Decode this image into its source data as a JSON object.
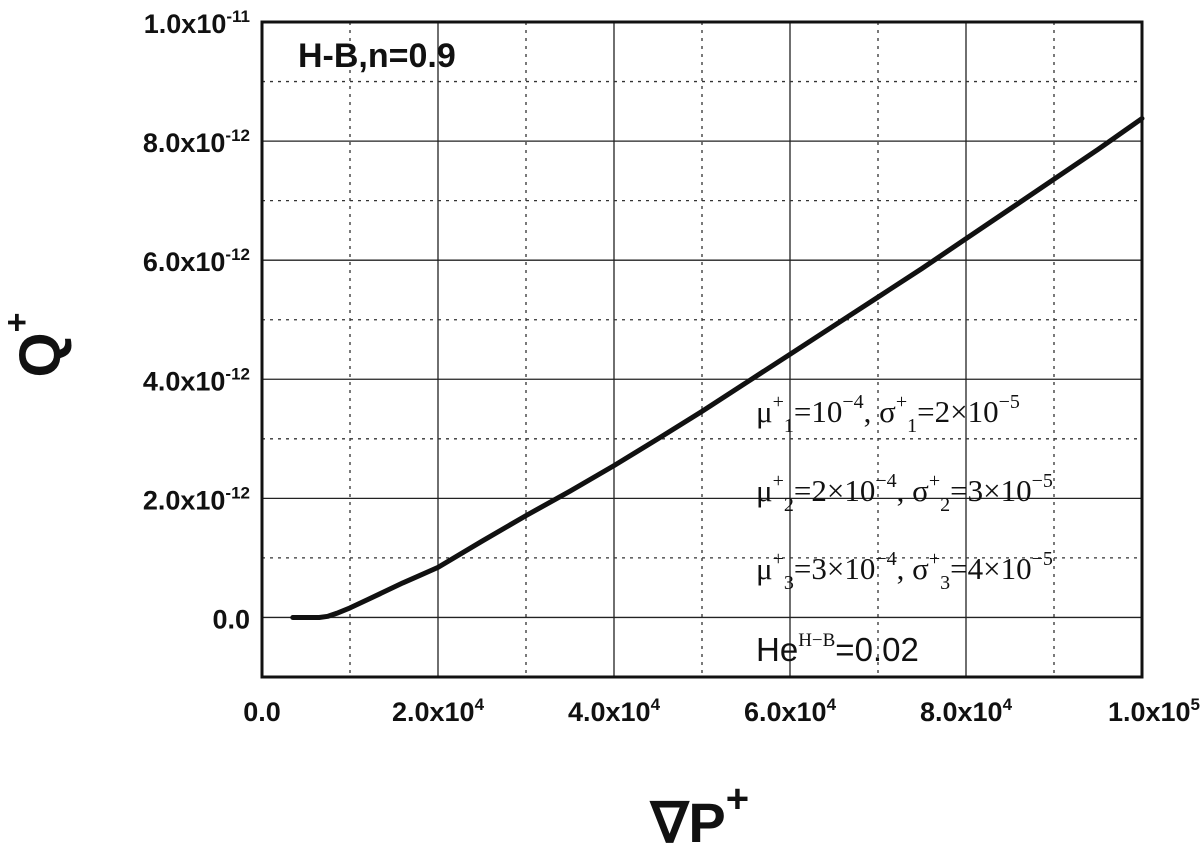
{
  "chart_data": {
    "type": "line",
    "panel_label": "H-B,n=0.9",
    "xlabel": {
      "base": "∇P",
      "sup": "+"
    },
    "ylabel": {
      "base": "Q",
      "sup": "+"
    },
    "xlim": [
      0,
      100000
    ],
    "ylim": [
      -1e-12,
      1e-11
    ],
    "x_ticks": [
      {
        "value": 0,
        "mantissa": "0.0",
        "exp": ""
      },
      {
        "value": 20000,
        "mantissa": "2.0x10",
        "exp": "4"
      },
      {
        "value": 40000,
        "mantissa": "4.0x10",
        "exp": "4"
      },
      {
        "value": 60000,
        "mantissa": "6.0x10",
        "exp": "4"
      },
      {
        "value": 80000,
        "mantissa": "8.0x10",
        "exp": "4"
      },
      {
        "value": 100000,
        "mantissa": "1.0x10",
        "exp": "5"
      }
    ],
    "y_ticks": [
      {
        "value": 0,
        "mantissa": "0.0",
        "exp": ""
      },
      {
        "value": 2e-12,
        "mantissa": "2.0x10",
        "exp": "-12"
      },
      {
        "value": 4e-12,
        "mantissa": "4.0x10",
        "exp": "-12"
      },
      {
        "value": 6e-12,
        "mantissa": "6.0x10",
        "exp": "-12"
      },
      {
        "value": 8e-12,
        "mantissa": "8.0x10",
        "exp": "-12"
      },
      {
        "value": 1e-11,
        "mantissa": "1.0x10",
        "exp": "-11"
      }
    ],
    "grid": true,
    "series": [
      {
        "x": [
          3500,
          5000,
          6500,
          7500,
          8500,
          10000,
          12000,
          14000,
          16000,
          18000,
          20000,
          25000,
          30000,
          35000,
          40000,
          45000,
          50000,
          55000,
          60000,
          65000,
          70000,
          75000,
          80000,
          85000,
          90000,
          95000,
          100000
        ],
        "y": [
          0,
          0,
          0,
          2e-14,
          7e-14,
          1.6e-13,
          3e-13,
          4.4e-13,
          5.8e-13,
          7.1e-13,
          8.4e-13,
          1.28e-12,
          1.71e-12,
          2.12e-12,
          2.55e-12,
          3e-12,
          3.46e-12,
          3.94e-12,
          4.42e-12,
          4.9e-12,
          5.38e-12,
          5.86e-12,
          6.36e-12,
          6.86e-12,
          7.36e-12,
          7.86e-12,
          8.38e-12
        ]
      }
    ],
    "annotations": [
      {
        "mu_sub": "1",
        "mu_val": "=10",
        "mu_exp": "−4",
        "sigma_sub": "1",
        "sigma_val": "=2×10",
        "sigma_exp": "−5"
      },
      {
        "mu_sub": "2",
        "mu_val": "=2×10",
        "mu_exp": "−4",
        "sigma_sub": "2",
        "sigma_val": "=3×10",
        "sigma_exp": "−5"
      },
      {
        "mu_sub": "3",
        "mu_val": "=3×10",
        "mu_exp": "−4",
        "sigma_sub": "3",
        "sigma_val": "=4×10",
        "sigma_exp": "−5"
      }
    ],
    "he": {
      "base": "He",
      "sup": "H−B",
      "value": "=0.02"
    },
    "mu_symbol": "μ",
    "sigma_symbol": "σ",
    "plus": "+",
    "separator": ", ",
    "line_color": "#111111"
  }
}
